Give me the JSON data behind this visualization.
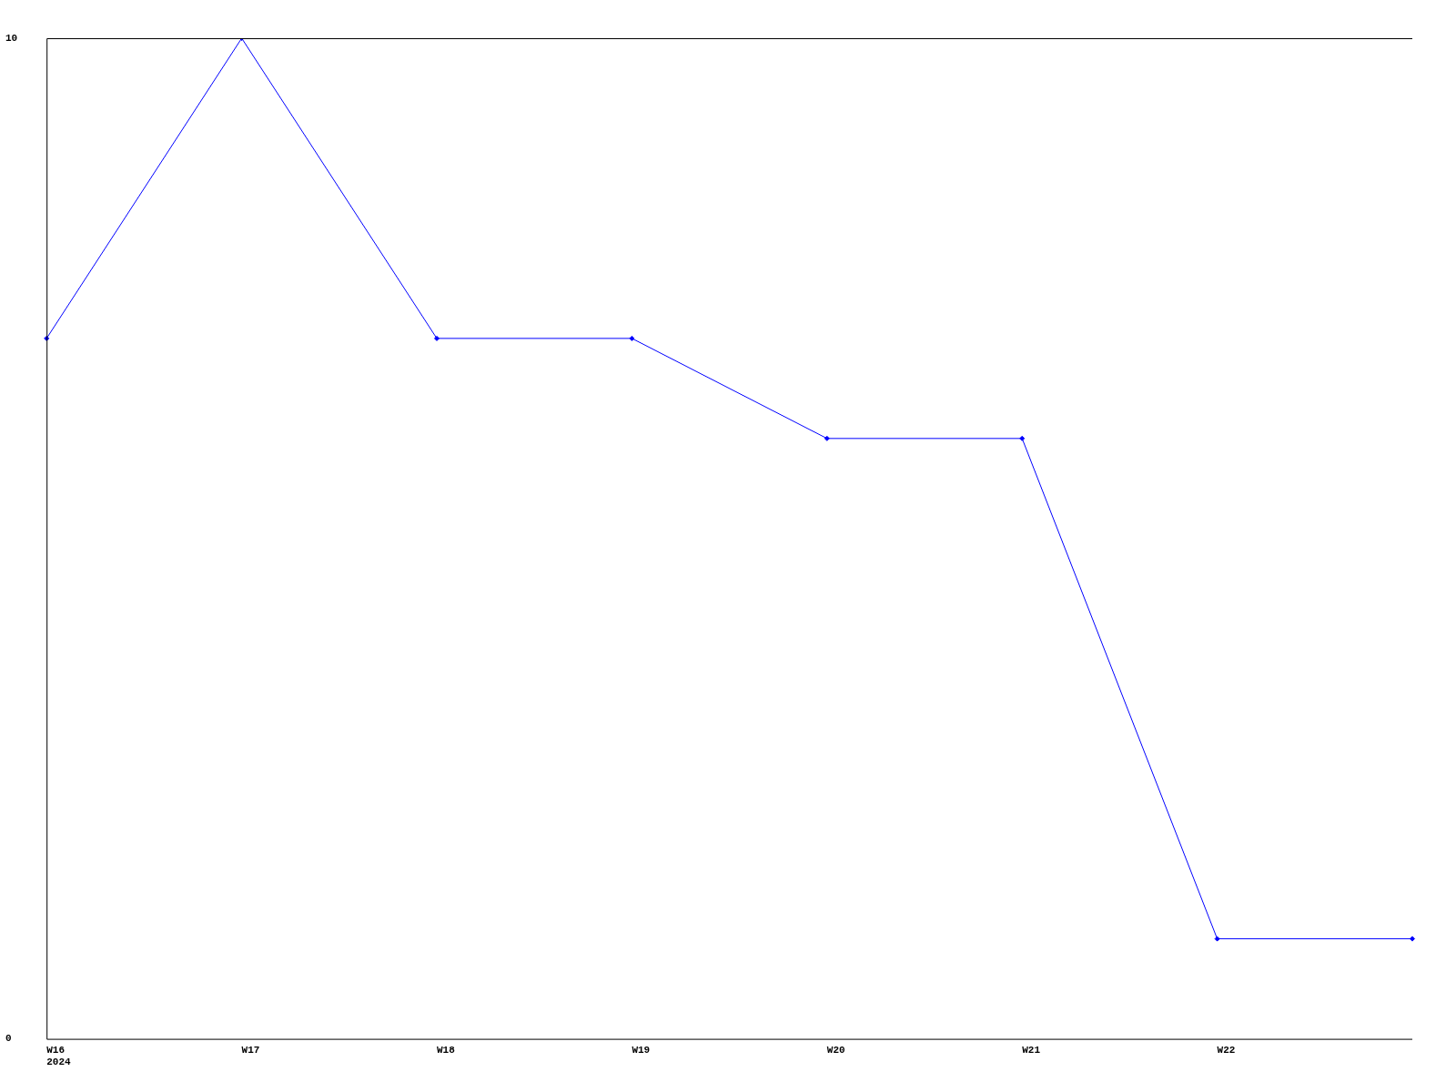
{
  "chart_data": {
    "type": "line",
    "categories": [
      "W16\n2024",
      "W17",
      "W18",
      "W19",
      "W20",
      "W21",
      "W22",
      null
    ],
    "series": [
      {
        "color": "#0000ff",
        "values": [
          7,
          10,
          7,
          7,
          6,
          6,
          1,
          1
        ]
      }
    ],
    "ylim": [
      0,
      10
    ],
    "yticks": [
      0,
      10
    ],
    "grid": false,
    "legend": false,
    "marker": "diamond"
  }
}
